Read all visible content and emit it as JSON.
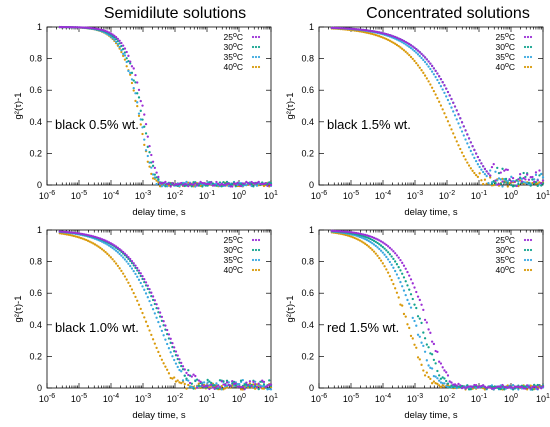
{
  "column_titles": [
    "Semidilute solutions",
    "Concentrated solutions"
  ],
  "legend_colors": {
    "25°C": "#9b2fd6",
    "30°C": "#14a38f",
    "35°C": "#3aa8e0",
    "40°C": "#d99a0a"
  },
  "chart_data": [
    {
      "type": "scatter",
      "annotation": "black 0.5% wt.",
      "xlabel": "delay time, s",
      "ylabel": "g²(τ)-1",
      "xscale": "log",
      "xlim": [
        1e-06,
        10
      ],
      "ylim": [
        0,
        1
      ],
      "xticks": [
        "10-6",
        "10-5",
        "10-4",
        "10-3",
        "10-2",
        "10-1",
        "100",
        "101"
      ],
      "yticks": [
        "0",
        "0.2",
        "0.4",
        "0.6",
        "0.8",
        "1"
      ],
      "legend_position": "top-right",
      "series": [
        {
          "name": "25°C",
          "color": "#9b2fd6",
          "tau": 0.0022,
          "beta": 1.25,
          "noise_start": 0.04,
          "noise_amp": 0.02
        },
        {
          "name": "30°C",
          "color": "#14a38f",
          "tau": 0.0019,
          "beta": 1.25,
          "noise_start": 0.04,
          "noise_amp": 0.02
        },
        {
          "name": "35°C",
          "color": "#3aa8e0",
          "tau": 0.0016,
          "beta": 1.25,
          "noise_start": 0.04,
          "noise_amp": 0.02
        },
        {
          "name": "40°C",
          "color": "#d99a0a",
          "tau": 0.0015,
          "beta": 1.25,
          "noise_start": 0.04,
          "noise_amp": 0.015
        }
      ]
    },
    {
      "type": "scatter",
      "annotation": "black 1.5% wt.",
      "xlabel": "delay time, s",
      "ylabel": "g²(τ)-1",
      "xscale": "log",
      "xlim": [
        1e-06,
        10
      ],
      "ylim": [
        0,
        1
      ],
      "xticks": [
        "10-6",
        "10-5",
        "10-4",
        "10-3",
        "10-2",
        "10-1",
        "100",
        "101"
      ],
      "yticks": [
        "0",
        "0.2",
        "0.4",
        "0.6",
        "0.8",
        "1"
      ],
      "legend_position": "top-right",
      "series": [
        {
          "name": "25°C",
          "color": "#9b2fd6",
          "tau": 0.12,
          "beta": 0.55,
          "noise_start": 0.5,
          "noise_amp": 0.1
        },
        {
          "name": "30°C",
          "color": "#14a38f",
          "tau": 0.12,
          "beta": 0.55,
          "noise_start": 0.5,
          "noise_amp": 0.1
        },
        {
          "name": "35°C",
          "color": "#3aa8e0",
          "tau": 0.09,
          "beta": 0.55,
          "noise_start": 0.5,
          "noise_amp": 0.08
        },
        {
          "name": "40°C",
          "color": "#d99a0a",
          "tau": 0.045,
          "beta": 0.55,
          "noise_start": 0.6,
          "noise_amp": 0.04
        }
      ]
    },
    {
      "type": "scatter",
      "annotation": "black 1.0% wt.",
      "xlabel": "delay time, s",
      "ylabel": "g²(τ)-1",
      "xscale": "log",
      "xlim": [
        1e-06,
        10
      ],
      "ylim": [
        0,
        1
      ],
      "xticks": [
        "10-6",
        "10-5",
        "10-4",
        "10-3",
        "10-2",
        "10-1",
        "100",
        "101"
      ],
      "yticks": [
        "0",
        "0.2",
        "0.4",
        "0.6",
        "0.8",
        "1"
      ],
      "legend_position": "top-right",
      "series": [
        {
          "name": "25°C",
          "color": "#9b2fd6",
          "tau": 0.018,
          "beta": 0.6,
          "noise_start": 0.3,
          "noise_amp": 0.05
        },
        {
          "name": "30°C",
          "color": "#14a38f",
          "tau": 0.016,
          "beta": 0.6,
          "noise_start": 0.3,
          "noise_amp": 0.05
        },
        {
          "name": "35°C",
          "color": "#3aa8e0",
          "tau": 0.012,
          "beta": 0.6,
          "noise_start": 0.3,
          "noise_amp": 0.05
        },
        {
          "name": "40°C",
          "color": "#d99a0a",
          "tau": 0.005,
          "beta": 0.6,
          "noise_start": 0.3,
          "noise_amp": 0.03
        }
      ]
    },
    {
      "type": "scatter",
      "annotation": "red 1.5% wt.",
      "xlabel": "delay time, s",
      "ylabel": "g²(τ)-1",
      "xscale": "log",
      "xlim": [
        1e-06,
        10
      ],
      "ylim": [
        0,
        1
      ],
      "xticks": [
        "10-6",
        "10-5",
        "10-4",
        "10-3",
        "10-2",
        "10-1",
        "100",
        "101"
      ],
      "yticks": [
        "0",
        "0.2",
        "0.4",
        "0.6",
        "0.8",
        "1"
      ],
      "legend_position": "top-right",
      "series": [
        {
          "name": "25°C",
          "color": "#9b2fd6",
          "tau": 0.007,
          "beta": 0.75,
          "noise_start": 0.05,
          "noise_amp": 0.02
        },
        {
          "name": "30°C",
          "color": "#14a38f",
          "tau": 0.0045,
          "beta": 0.75,
          "noise_start": 0.05,
          "noise_amp": 0.02
        },
        {
          "name": "35°C",
          "color": "#3aa8e0",
          "tau": 0.003,
          "beta": 0.75,
          "noise_start": 0.05,
          "noise_amp": 0.02
        },
        {
          "name": "40°C",
          "color": "#d99a0a",
          "tau": 0.0017,
          "beta": 0.75,
          "noise_start": 0.05,
          "noise_amp": 0.02
        }
      ]
    }
  ]
}
